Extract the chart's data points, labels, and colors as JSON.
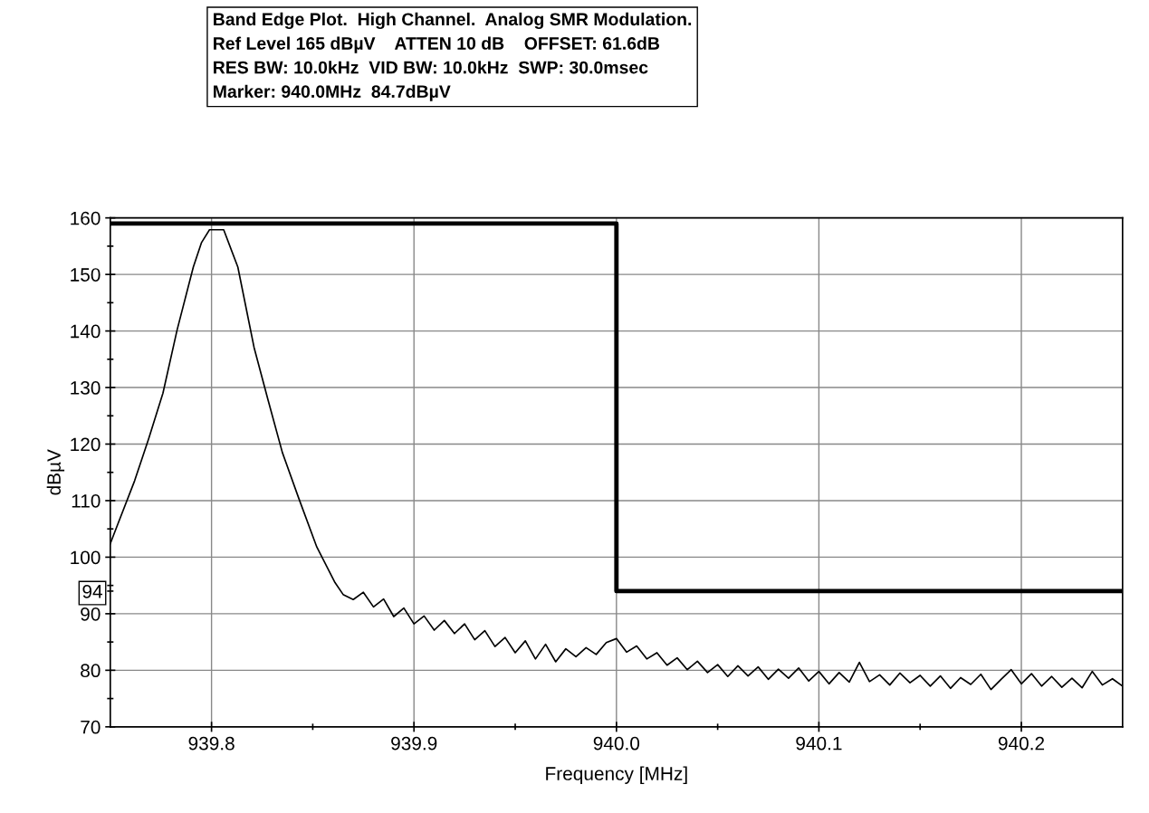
{
  "chart_data": {
    "type": "line",
    "title": "Band Edge Plot.  High Channel.  Analog SMR Modulation.\nRef Level 165 dBµV    ATTEN 10 dB    OFFSET: 61.6dB\nRES BW: 10.0kHz  VID BW: 10.0kHz  SWP: 30.0msec\nMarker: 940.0MHz  84.7dBµV",
    "xlabel": "Frequency [MHz]",
    "ylabel": "dBµV",
    "xlim": [
      939.75,
      940.25
    ],
    "ylim": [
      70,
      160
    ],
    "xticks": [
      {
        "value": 939.8,
        "label": "939.8"
      },
      {
        "value": 939.85,
        "label": null
      },
      {
        "value": 939.9,
        "label": "939.9"
      },
      {
        "value": 939.95,
        "label": null
      },
      {
        "value": 940.0,
        "label": "940.0"
      },
      {
        "value": 940.05,
        "label": null
      },
      {
        "value": 940.1,
        "label": "940.1"
      },
      {
        "value": 940.15,
        "label": null
      },
      {
        "value": 940.2,
        "label": "940.2"
      }
    ],
    "yticks": [
      70,
      {
        "value": 75,
        "label": null
      },
      80,
      {
        "value": 85,
        "label": null
      },
      90,
      {
        "value": 94,
        "label": "94"
      },
      {
        "value": 95,
        "label": null
      },
      100,
      {
        "value": 105,
        "label": null
      },
      110,
      {
        "value": 115,
        "label": null
      },
      120,
      {
        "value": 125,
        "label": null
      },
      130,
      {
        "value": 135,
        "label": null
      },
      140,
      {
        "value": 145,
        "label": null
      },
      150,
      {
        "value": 155,
        "label": null
      },
      160
    ],
    "grid": true,
    "series": [
      {
        "color": "#000000",
        "x": [
          939.75,
          939.753,
          939.762,
          939.769,
          939.776,
          939.783,
          939.791,
          939.795,
          939.799,
          939.806,
          939.813,
          939.821,
          939.828,
          939.835,
          939.843,
          939.852,
          939.861,
          939.865,
          939.87,
          939.875,
          939.88,
          939.885,
          939.89,
          939.895,
          939.9,
          939.905,
          939.91,
          939.915,
          939.92,
          939.925,
          939.93,
          939.935,
          939.94,
          939.945,
          939.95,
          939.955,
          939.96,
          939.965,
          939.97,
          939.975,
          939.98,
          939.985,
          939.99,
          939.995,
          940.0,
          940.005,
          940.01,
          940.015,
          940.02,
          940.025,
          940.03,
          940.035,
          940.04,
          940.045,
          940.05,
          940.055,
          940.06,
          940.065,
          940.07,
          940.075,
          940.08,
          940.085,
          940.09,
          940.095,
          940.1,
          940.105,
          940.11,
          940.115,
          940.12,
          940.125,
          940.13,
          940.135,
          940.14,
          940.145,
          940.15,
          940.155,
          940.16,
          940.165,
          940.17,
          940.175,
          940.18,
          940.185,
          940.19,
          940.195,
          940.2,
          940.205,
          940.21,
          940.215,
          940.22,
          940.225,
          940.23,
          940.235,
          940.24,
          940.245,
          940.25
        ],
        "values": [
          102.4,
          105.2,
          113.5,
          121.0,
          129.0,
          140.2,
          151.3,
          155.6,
          157.9,
          157.9,
          151.3,
          137.1,
          127.7,
          118.5,
          110.5,
          101.8,
          95.5,
          93.4,
          92.5,
          93.8,
          91.2,
          92.6,
          89.5,
          91.0,
          88.2,
          89.6,
          87.1,
          88.8,
          86.5,
          88.2,
          85.4,
          87.0,
          84.2,
          85.8,
          83.1,
          85.2,
          82.0,
          84.6,
          81.5,
          83.8,
          82.4,
          84.0,
          82.8,
          84.9,
          85.6,
          83.2,
          84.3,
          82.0,
          83.1,
          80.9,
          82.2,
          80.1,
          81.6,
          79.6,
          81.0,
          78.9,
          80.8,
          79.0,
          80.6,
          78.4,
          80.2,
          78.6,
          80.4,
          78.1,
          79.8,
          77.6,
          79.6,
          77.9,
          81.4,
          78.0,
          79.2,
          77.4,
          79.5,
          77.8,
          79.1,
          77.2,
          79.0,
          76.8,
          78.7,
          77.5,
          79.3,
          76.6,
          78.4,
          80.1,
          77.6,
          79.4,
          77.2,
          78.9,
          77.0,
          78.6,
          76.9,
          79.8,
          77.4,
          78.5,
          77.2
        ]
      },
      {
        "type": "step",
        "color": "#000000",
        "x": [
          939.75,
          940.0,
          940.25
        ],
        "values": [
          159,
          94,
          94
        ]
      }
    ]
  }
}
